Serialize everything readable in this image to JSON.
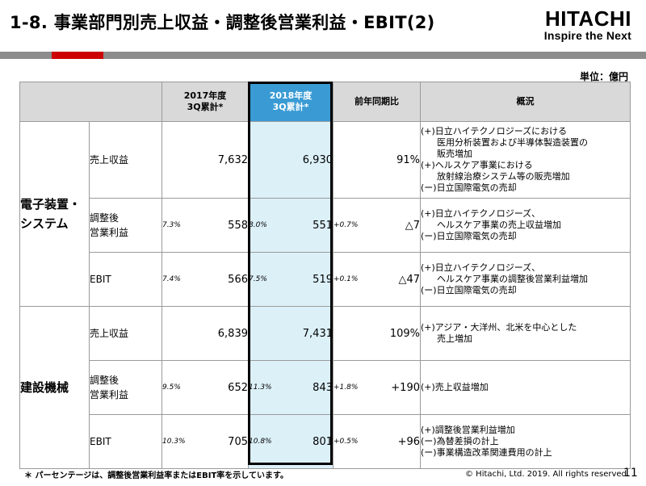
{
  "header": {
    "title": "1-8. 事業部門別売上収益・調整後営業利益・EBIT(2)",
    "brand": "HITACHI",
    "tagline": "Inspire the Next"
  },
  "unit_label": "単位：億円",
  "columns": {
    "y2017": [
      "2017年度",
      "3Q累計*"
    ],
    "y2018": [
      "2018年度",
      "3Q累計*"
    ],
    "yoy": "前年同期比",
    "overview": "概況"
  },
  "segments": [
    {
      "name": [
        "電子装置・",
        "システム"
      ],
      "rows": [
        {
          "item": [
            "売上収益"
          ],
          "p17": "",
          "v17": "7,632",
          "p18": "",
          "v18": "6,930",
          "pdiff": "",
          "yoy": "91%",
          "overview": [
            {
              "t": "(+)日立ハイテクノロジーズにおける",
              "i": false
            },
            {
              "t": "医用分析装置および半導体製造装置の",
              "i": true
            },
            {
              "t": "販売増加",
              "i": true
            },
            {
              "t": "(+)ヘルスケア事業における",
              "i": false
            },
            {
              "t": "放射線治療システム等の販売増加",
              "i": true
            },
            {
              "t": "(ー)日立国際電気の売却",
              "i": false
            }
          ]
        },
        {
          "item": [
            "調整後",
            "営業利益"
          ],
          "p17": "7.3%",
          "v17": "558",
          "p18": "8.0%",
          "v18": "551",
          "pdiff": "+0.7%",
          "yoy": "△7",
          "overview": [
            {
              "t": "(+)日立ハイテクノロジーズ、",
              "i": false
            },
            {
              "t": "ヘルスケア事業の売上収益増加",
              "i": true
            },
            {
              "t": "(ー)日立国際電気の売却",
              "i": false
            }
          ]
        },
        {
          "item": [
            "EBIT"
          ],
          "p17": "7.4%",
          "v17": "566",
          "p18": "7.5%",
          "v18": "519",
          "pdiff": "+0.1%",
          "yoy": "△47",
          "overview": [
            {
              "t": "(+)日立ハイテクノロジーズ、",
              "i": false
            },
            {
              "t": "ヘルスケア事業の調整後営業利益増加",
              "i": true
            },
            {
              "t": "(ー)日立国際電気の売却",
              "i": false
            }
          ]
        }
      ]
    },
    {
      "name": [
        "建設機械"
      ],
      "rows": [
        {
          "item": [
            "売上収益"
          ],
          "p17": "",
          "v17": "6,839",
          "p18": "",
          "v18": "7,431",
          "pdiff": "",
          "yoy": "109%",
          "overview": [
            {
              "t": "(+)アジア・大洋州、北米を中心とした",
              "i": false
            },
            {
              "t": "売上増加",
              "i": true
            }
          ]
        },
        {
          "item": [
            "調整後",
            "営業利益"
          ],
          "p17": "9.5%",
          "v17": "652",
          "p18": "11.3%",
          "v18": "843",
          "pdiff": "+1.8%",
          "yoy": "+190",
          "overview": [
            {
              "t": "(+)売上収益増加",
              "i": false
            }
          ]
        },
        {
          "item": [
            "EBIT"
          ],
          "p17": "10.3%",
          "v17": "705",
          "p18": "10.8%",
          "v18": "801",
          "pdiff": "+0.5%",
          "yoy": "+96",
          "overview": [
            {
              "t": "(+)調整後営業利益増加",
              "i": false
            },
            {
              "t": "(ー)為替差損の計上",
              "i": false
            },
            {
              "t": "(ー)事業構造改革関連費用の計上",
              "i": false
            }
          ]
        }
      ]
    }
  ],
  "footnote": "＊ パーセンテージは、調整後営業利益率またはEBIT率を示しています。",
  "copyright": "© Hitachi, Ltd. 2019. All rights reserved.",
  "page_number": "11"
}
